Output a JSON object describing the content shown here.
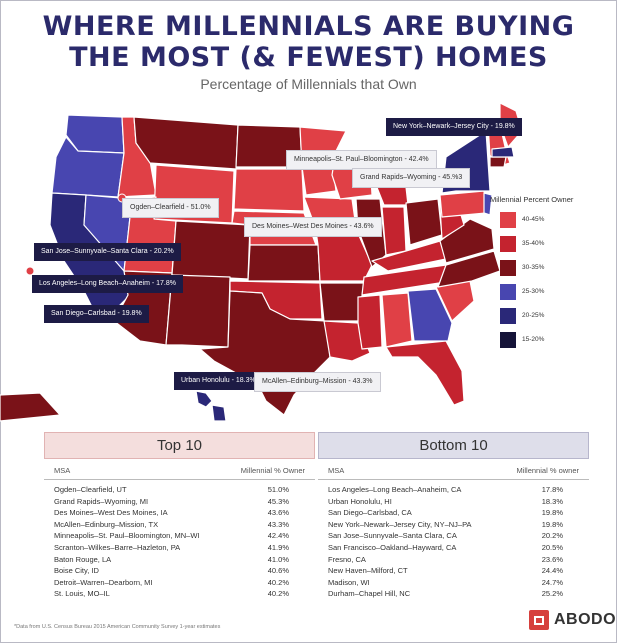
{
  "title_line1": "WHERE MILLENNIALS ARE BUYING",
  "title_line2": "THE MOST (& FEWEST) HOMES",
  "subtitle": "Percentage of Millennials that Own",
  "legend": {
    "title": "Millennial Percent Owner",
    "items": [
      {
        "label": "40-45%",
        "color": "#e04046"
      },
      {
        "label": "35-40%",
        "color": "#c4232f"
      },
      {
        "label": "30-35%",
        "color": "#7a1218"
      },
      {
        "label": "25-30%",
        "color": "#4846b0"
      },
      {
        "label": "20-25%",
        "color": "#2a2878"
      },
      {
        "label": "15-20%",
        "color": "#151338"
      }
    ]
  },
  "callouts": [
    {
      "text": "New York–Newark–Jersey City - 19.8%",
      "style": "dark"
    },
    {
      "text": "Minneapolis–St. Paul–Bloomington - 42.4%",
      "style": "light"
    },
    {
      "text": "Grand Rapids–Wyoming - 45.%3",
      "style": "light"
    },
    {
      "text": "Ogden–Clearfield - 51.0%",
      "style": "light"
    },
    {
      "text": "Des Moines–West Des Moines - 43.6%",
      "style": "light"
    },
    {
      "text": "San Jose–Sunnyvale–Santa Clara - 20.2%",
      "style": "dark"
    },
    {
      "text": "Los Angeles–Long Beach–Anaheim - 17.8%",
      "style": "dark"
    },
    {
      "text": "San Diego–Carlsbad - 19.8%",
      "style": "dark"
    },
    {
      "text": "Urban Honolulu - 18.3%",
      "style": "dark"
    },
    {
      "text": "McAllen–Edinburg–Mission - 43.3%",
      "style": "light"
    }
  ],
  "top10": {
    "heading": "Top 10",
    "col_msa": "MSA",
    "col_pct": "Millennial % Owner",
    "rows": [
      {
        "msa": "Ogden–Clearfield, UT",
        "pct": "51.0%"
      },
      {
        "msa": "Grand Rapids–Wyoming, MI",
        "pct": "45.3%"
      },
      {
        "msa": "Des Moines–West Des Moines, IA",
        "pct": "43.6%"
      },
      {
        "msa": "McAllen–Edinburg–Mission, TX",
        "pct": "43.3%"
      },
      {
        "msa": "Minneapolis–St. Paul–Bloomington, MN–WI",
        "pct": "42.4%"
      },
      {
        "msa": "Scranton–Wilkes–Barre–Hazleton, PA",
        "pct": "41.9%"
      },
      {
        "msa": "Baton Rouge, LA",
        "pct": "41.0%"
      },
      {
        "msa": "Boise City, ID",
        "pct": "40.6%"
      },
      {
        "msa": "Detroit–Warren–Dearborn, MI",
        "pct": "40.2%"
      },
      {
        "msa": "St. Louis, MO–IL",
        "pct": "40.2%"
      }
    ]
  },
  "bottom10": {
    "heading": "Bottom 10",
    "col_msa": "MSA",
    "col_pct": "Millennial % owner",
    "rows": [
      {
        "msa": "Los Angeles–Long Beach–Anaheim, CA",
        "pct": "17.8%"
      },
      {
        "msa": "Urban Honolulu, HI",
        "pct": "18.3%"
      },
      {
        "msa": "San Diego–Carlsbad, CA",
        "pct": "19.8%"
      },
      {
        "msa": "New York–Newark–Jersey City, NY–NJ–PA",
        "pct": "19.8%"
      },
      {
        "msa": "San Jose–Sunnyvale–Santa Clara, CA",
        "pct": "20.2%"
      },
      {
        "msa": "San Francisco–Oakland–Hayward, CA",
        "pct": "20.5%"
      },
      {
        "msa": "Fresno, CA",
        "pct": "23.6%"
      },
      {
        "msa": "New Haven–Milford, CT",
        "pct": "24.4%"
      },
      {
        "msa": "Madison, WI",
        "pct": "24.7%"
      },
      {
        "msa": "Durham–Chapel Hill, NC",
        "pct": "25.2%"
      }
    ]
  },
  "footnote": "*Data from U.S. Census Bureau 2015 American Community Survey 1-year estimates",
  "logo_text": "ABODO"
}
